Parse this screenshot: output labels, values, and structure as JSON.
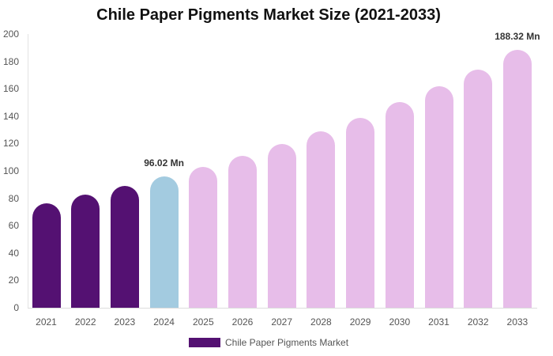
{
  "chart_data": {
    "type": "bar",
    "title": "Chile Paper Pigments Market Size (2021-2033)",
    "xlabel": "",
    "ylabel": "",
    "ylim": [
      0,
      200
    ],
    "yticks": [
      0,
      20,
      40,
      60,
      80,
      100,
      120,
      140,
      160,
      180,
      200
    ],
    "grid": false,
    "legend_position": "bottom",
    "categories": [
      "2021",
      "2022",
      "2023",
      "2024",
      "2025",
      "2026",
      "2027",
      "2028",
      "2029",
      "2030",
      "2031",
      "2032",
      "2033"
    ],
    "series": [
      {
        "name": "Chile Paper Pigments Market",
        "values": [
          76.3,
          82.7,
          89.0,
          96.02,
          102.9,
          111.0,
          119.7,
          128.9,
          138.7,
          150.3,
          161.8,
          174.0,
          188.32
        ],
        "colors": [
          "#541172",
          "#541172",
          "#541172",
          "#a3cbe0",
          "#e7bde9",
          "#e7bde9",
          "#e7bde9",
          "#e7bde9",
          "#e7bde9",
          "#e7bde9",
          "#e7bde9",
          "#e7bde9",
          "#e7bde9"
        ]
      }
    ],
    "annotations": [
      {
        "category": "2024",
        "text": "96.02 Mn"
      },
      {
        "category": "2033",
        "text": "188.32 Mn"
      }
    ]
  },
  "legend": {
    "label": "Chile Paper Pigments Market",
    "color": "#541172"
  }
}
